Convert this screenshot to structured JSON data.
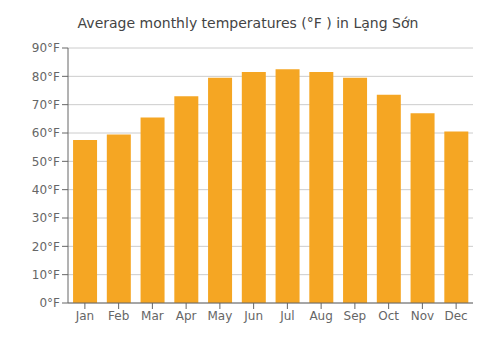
{
  "chart_data": {
    "type": "bar",
    "title": "Average monthly temperatures (°F ) in Lạ̣ng Sớn",
    "categories": [
      "Jan",
      "Feb",
      "Mar",
      "Apr",
      "May",
      "Jun",
      "Jul",
      "Aug",
      "Sep",
      "Oct",
      "Nov",
      "Dec"
    ],
    "values": [
      57.5,
      59.5,
      65.5,
      73.0,
      79.5,
      81.5,
      82.5,
      81.5,
      79.5,
      73.5,
      67.0,
      60.5
    ],
    "color": "#F5A623",
    "ylim": [
      0,
      90
    ],
    "yticks": [
      {
        "value": 0,
        "label": "0°F"
      },
      {
        "value": 10,
        "label": "10°F"
      },
      {
        "value": 20,
        "label": "20°F"
      },
      {
        "value": 30,
        "label": "30°F"
      },
      {
        "value": 40,
        "label": "40°F"
      },
      {
        "value": 50,
        "label": "50°F"
      },
      {
        "value": 60,
        "label": "60°F"
      },
      {
        "value": 70,
        "label": "70°F"
      },
      {
        "value": 80,
        "label": "80°F"
      },
      {
        "value": 90,
        "label": "90°F"
      }
    ],
    "grid": true
  }
}
